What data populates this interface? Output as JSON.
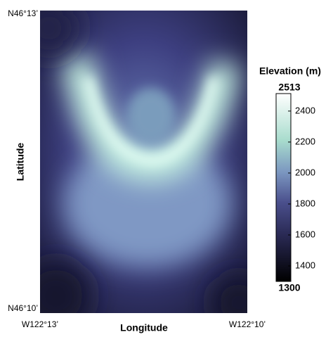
{
  "chart_data": {
    "type": "heatmap",
    "xlabel": "Longitude",
    "ylabel": "Latitude",
    "xlim": [
      -122.21667,
      -122.16667
    ],
    "xticks": [
      {
        "value": -122.21667,
        "label": "W122°13’"
      },
      {
        "value": -122.16667,
        "label": "W122°10’"
      }
    ],
    "ylim": [
      46.16667,
      46.21667
    ],
    "yticks": [
      {
        "value": 46.21667,
        "label": "N46°13’"
      },
      {
        "value": 46.16667,
        "label": "N46°10’"
      }
    ],
    "colorbar_label": "Elevation (m)",
    "clim": [
      1300,
      2513
    ],
    "cticks": [
      1400,
      1600,
      1800,
      2000,
      2200,
      2400
    ]
  }
}
